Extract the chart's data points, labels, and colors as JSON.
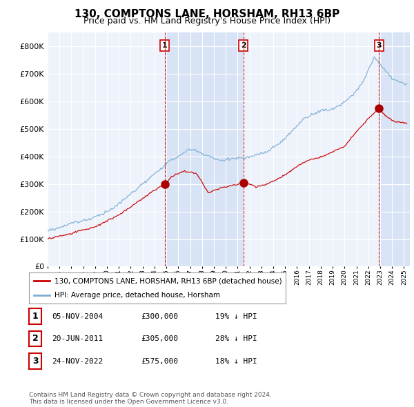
{
  "title": "130, COMPTONS LANE, HORSHAM, RH13 6BP",
  "subtitle": "Price paid vs. HM Land Registry's House Price Index (HPI)",
  "title_fontsize": 11,
  "subtitle_fontsize": 9,
  "ylim": [
    0,
    850000
  ],
  "yticks": [
    0,
    100000,
    200000,
    300000,
    400000,
    500000,
    600000,
    700000,
    800000
  ],
  "ytick_labels": [
    "£0",
    "£100K",
    "£200K",
    "£300K",
    "£400K",
    "£500K",
    "£600K",
    "£700K",
    "£800K"
  ],
  "background_color": "#ffffff",
  "plot_bg_color": "#eef2fa",
  "shade_color": "#d8e4f5",
  "grid_color": "#ffffff",
  "hpi_color": "#7aadd4",
  "price_color": "#cc0000",
  "sale_marker_color": "#aa0000",
  "vline_color": "#cc0000",
  "sale_points": [
    {
      "date_num": 2004.85,
      "price": 300000,
      "label": "1"
    },
    {
      "date_num": 2011.47,
      "price": 305000,
      "label": "2"
    },
    {
      "date_num": 2022.9,
      "price": 575000,
      "label": "3"
    }
  ],
  "table_rows": [
    {
      "num": "1",
      "date": "05-NOV-2004",
      "price": "£300,000",
      "note": "19% ↓ HPI"
    },
    {
      "num": "2",
      "date": "20-JUN-2011",
      "price": "£305,000",
      "note": "28% ↓ HPI"
    },
    {
      "num": "3",
      "date": "24-NOV-2022",
      "price": "£575,000",
      "note": "18% ↓ HPI"
    }
  ],
  "legend_entries": [
    "130, COMPTONS LANE, HORSHAM, RH13 6BP (detached house)",
    "HPI: Average price, detached house, Horsham"
  ],
  "footer_text": "Contains HM Land Registry data © Crown copyright and database right 2024.\nThis data is licensed under the Open Government Licence v3.0.",
  "xmin": 1995.0,
  "xmax": 2025.5
}
